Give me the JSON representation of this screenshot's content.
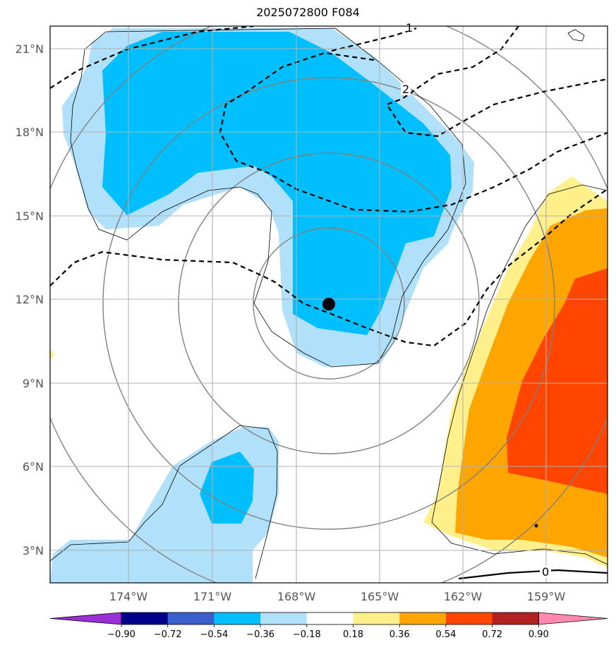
{
  "title": "2025072800 F084",
  "lat_labels": [
    "21°N",
    "18°N",
    "15°N",
    "12°N",
    "9°N",
    "6°N",
    "3°N"
  ],
  "lon_labels": [
    "174°W",
    "171°W",
    "168°W",
    "165°W",
    "162°W",
    "159°W"
  ],
  "colorbar": {
    "tick_labels": [
      "−0.90",
      "−0.72",
      "−0.54",
      "−0.36",
      "−0.18",
      "0.18",
      "0.36",
      "0.54",
      "0.72",
      "0.90"
    ],
    "colors": [
      "#9b30d9",
      "#00008b",
      "#3a5fcd",
      "#00bfff",
      "#b0e0fa",
      "#ffffff",
      "#fff08c",
      "#ffa500",
      "#ff4500",
      "#b22222",
      "#ff88b0"
    ]
  },
  "contour_labels": [
    "1",
    "2",
    "0"
  ],
  "storm_marker": {
    "lon": "167°W",
    "lat": "12°N",
    "color": "#000000"
  }
}
